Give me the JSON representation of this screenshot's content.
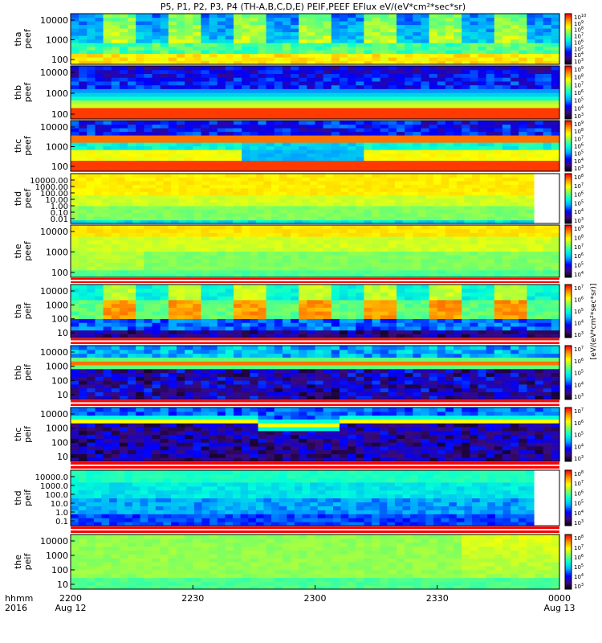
{
  "chart_data": {
    "type": "heatmap",
    "title": "P5, P1, P2, P3, P4 (TH-A,B,C,D,E) PEIF,PEEF EFlux eV/(eV*cm²*sec*sr)",
    "x_axis": {
      "ticks": [
        "2200",
        "2230",
        "2300",
        "2330",
        "0000"
      ],
      "date_labels": [
        "Aug 12",
        "Aug 13"
      ],
      "row_labels": [
        "hhmm",
        "2016"
      ],
      "range": [
        "2016-08-12 22:00",
        "2016-08-13 00:00"
      ]
    },
    "colorbar_unit": "eV/(eV*cm²*sec*sr)",
    "panels": [
      {
        "probe": "tha",
        "product": "peef",
        "yscale": "log",
        "yticks": [
          "100",
          "1000",
          "10000"
        ],
        "cbar_exponents": [
          "3",
          "4",
          "5",
          "6",
          "7",
          "8",
          "9",
          "10"
        ]
      },
      {
        "probe": "thb",
        "product": "peef",
        "yscale": "log",
        "yticks": [
          "100",
          "1000",
          "10000"
        ],
        "cbar_exponents": [
          "3",
          "4",
          "5",
          "6",
          "7",
          "8",
          "9"
        ]
      },
      {
        "probe": "thc",
        "product": "peef",
        "yscale": "log",
        "yticks": [
          "100",
          "1000",
          "10000"
        ],
        "cbar_exponents": [
          "3",
          "4",
          "5",
          "6",
          "7",
          "8",
          "9"
        ]
      },
      {
        "probe": "thd",
        "product": "peef",
        "yscale": "log",
        "yticks": [
          "0.01",
          "0.10",
          "1.00",
          "10.00",
          "100.00",
          "1000.00",
          "10000.00"
        ],
        "cbar_exponents": [
          "3",
          "4",
          "5",
          "6",
          "7",
          "8"
        ]
      },
      {
        "probe": "the",
        "product": "peef",
        "yscale": "log",
        "yticks": [
          "100",
          "1000",
          "10000"
        ],
        "cbar_exponents": [
          "4",
          "5",
          "6",
          "7",
          "8",
          "9"
        ]
      },
      {
        "probe": "tha",
        "product": "peif",
        "yscale": "log",
        "yticks": [
          "10",
          "100",
          "1000",
          "10000"
        ],
        "cbar_exponents": [
          "3",
          "4",
          "5",
          "6",
          "7"
        ]
      },
      {
        "probe": "thb",
        "product": "peif",
        "yscale": "log",
        "yticks": [
          "10",
          "100",
          "1000",
          "10000"
        ],
        "cbar_exponents": [
          "3",
          "4",
          "5",
          "6",
          "7"
        ]
      },
      {
        "probe": "thc",
        "product": "peif",
        "yscale": "log",
        "yticks": [
          "10",
          "100",
          "1000",
          "10000"
        ],
        "cbar_exponents": [
          "3",
          "4",
          "5",
          "6",
          "7"
        ]
      },
      {
        "probe": "thd",
        "product": "peif",
        "yscale": "log",
        "yticks": [
          "0.1",
          "1.0",
          "10.0",
          "100.0",
          "1000.0",
          "10000.0"
        ],
        "cbar_exponents": [
          "3",
          "4",
          "5",
          "6",
          "7",
          "8"
        ]
      },
      {
        "probe": "the",
        "product": "peif",
        "yscale": "log",
        "yticks": [
          "10",
          "100",
          "1000",
          "10000"
        ],
        "cbar_exponents": [
          "3",
          "4",
          "5",
          "6",
          "7",
          "8"
        ]
      }
    ],
    "colormap": [
      "#000000",
      "#3b0a7a",
      "#0000ff",
      "#00a8ff",
      "#00ffd8",
      "#7dff60",
      "#ffff00",
      "#ff9000",
      "#ff0000"
    ]
  }
}
